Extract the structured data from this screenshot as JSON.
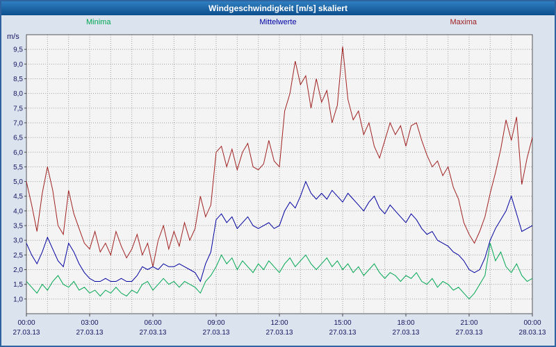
{
  "window": {
    "title": "Windgeschwindigkeit [m/s] skaliert"
  },
  "legend": {
    "minima": "Minima",
    "mittelwerte": "Mittelwerte",
    "maxima": "Maxima"
  },
  "colors": {
    "maxima": "#a02020",
    "mittelwerte": "#0000a0",
    "minima": "#00a651",
    "titlebar_top": "#2f7fc1",
    "titlebar_bottom": "#0d4e8c",
    "page_bg": "#dbe3ef",
    "plot_bg": "#f4f4f4",
    "grid": "#a0a0a0",
    "axis_text": "#14145f",
    "border": "#2f639f"
  },
  "chart_data": {
    "type": "line",
    "title": "Windgeschwindigkeit [m/s] skaliert",
    "ylabel": "m/s",
    "xlabel": "",
    "grid": true,
    "legend_position": "top",
    "ylim": [
      0.5,
      10.0
    ],
    "y_tick_min": 1.0,
    "y_tick_max": 9.5,
    "y_tick_step": 0.5,
    "y_tick_labels": [
      "1,0",
      "1,5",
      "2,0",
      "2,5",
      "3,0",
      "3,5",
      "4,0",
      "4,5",
      "5,0",
      "5,5",
      "6,0",
      "6,5",
      "7,0",
      "7,5",
      "8,0",
      "8,5",
      "9,0",
      "9,5"
    ],
    "x_hours": 24,
    "sample_interval_hours": 0.25,
    "x_ticks": [
      {
        "hour": 0,
        "time": "00:00",
        "date": "27.03.13"
      },
      {
        "hour": 3,
        "time": "03:00",
        "date": "27.03.13"
      },
      {
        "hour": 6,
        "time": "06:00",
        "date": "27.03.13"
      },
      {
        "hour": 9,
        "time": "09:00",
        "date": "27.03.13"
      },
      {
        "hour": 12,
        "time": "12:00",
        "date": "27.03.13"
      },
      {
        "hour": 15,
        "time": "15:00",
        "date": "27.03.13"
      },
      {
        "hour": 18,
        "time": "18:00",
        "date": "27.03.13"
      },
      {
        "hour": 21,
        "time": "21:00",
        "date": "27.03.13"
      },
      {
        "hour": 24,
        "time": "00:00",
        "date": "28.03.13"
      }
    ],
    "series": [
      {
        "name": "Maxima",
        "color_key": "maxima",
        "values": [
          5.0,
          4.2,
          3.3,
          4.6,
          5.5,
          4.7,
          3.5,
          3.2,
          4.7,
          3.9,
          3.4,
          2.9,
          2.7,
          3.3,
          2.6,
          2.9,
          2.5,
          3.3,
          2.8,
          2.4,
          2.7,
          3.2,
          2.5,
          2.9,
          2.1,
          3.0,
          3.5,
          2.7,
          3.3,
          2.8,
          3.6,
          3.0,
          3.4,
          4.5,
          3.8,
          4.2,
          6.0,
          6.2,
          5.5,
          6.1,
          5.4,
          6.0,
          6.3,
          5.5,
          5.4,
          5.6,
          6.4,
          5.7,
          5.5,
          7.4,
          8.0,
          9.1,
          8.3,
          8.6,
          7.5,
          8.5,
          7.7,
          8.1,
          7.0,
          7.6,
          9.6,
          7.8,
          7.1,
          7.4,
          6.6,
          7.0,
          6.2,
          5.8,
          6.4,
          7.0,
          6.6,
          6.9,
          6.2,
          6.9,
          7.0,
          6.4,
          5.9,
          5.5,
          5.7,
          5.2,
          5.5,
          4.8,
          4.4,
          3.6,
          3.2,
          2.9,
          3.3,
          3.8,
          4.6,
          5.3,
          6.1,
          7.1,
          6.4,
          7.2,
          4.9,
          5.8,
          6.5
        ]
      },
      {
        "name": "Mittelwerte",
        "color_key": "mittelwerte",
        "values": [
          2.9,
          2.5,
          2.2,
          2.6,
          3.1,
          2.7,
          2.3,
          2.1,
          2.9,
          2.6,
          2.2,
          1.9,
          1.7,
          1.6,
          1.6,
          1.7,
          1.6,
          1.6,
          1.7,
          1.6,
          1.6,
          1.8,
          2.1,
          2.0,
          2.1,
          2.0,
          2.2,
          2.1,
          2.1,
          2.2,
          2.1,
          2.0,
          1.9,
          1.6,
          2.2,
          2.6,
          3.7,
          3.9,
          3.6,
          3.8,
          3.4,
          3.6,
          3.8,
          3.5,
          3.4,
          3.5,
          3.6,
          3.4,
          3.5,
          4.0,
          4.3,
          4.1,
          4.5,
          5.0,
          4.6,
          4.4,
          4.6,
          4.4,
          4.7,
          4.5,
          4.3,
          4.6,
          4.4,
          4.2,
          4.0,
          4.3,
          4.5,
          4.1,
          3.9,
          4.2,
          4.0,
          3.8,
          3.6,
          3.9,
          3.7,
          3.4,
          3.2,
          3.3,
          3.0,
          2.9,
          2.8,
          2.6,
          2.5,
          2.3,
          2.0,
          1.9,
          2.0,
          2.4,
          3.0,
          3.4,
          3.7,
          4.0,
          4.5,
          3.9,
          3.3,
          3.4,
          3.5
        ]
      },
      {
        "name": "Minima",
        "color_key": "minima",
        "values": [
          1.6,
          1.4,
          1.2,
          1.5,
          1.3,
          1.6,
          1.8,
          1.5,
          1.4,
          1.6,
          1.3,
          1.4,
          1.2,
          1.3,
          1.1,
          1.3,
          1.2,
          1.4,
          1.2,
          1.1,
          1.3,
          1.2,
          1.5,
          1.6,
          1.3,
          1.5,
          1.7,
          1.5,
          1.6,
          1.4,
          1.6,
          1.5,
          1.4,
          1.2,
          1.6,
          1.8,
          2.1,
          2.5,
          2.2,
          2.4,
          2.0,
          2.3,
          2.1,
          1.9,
          2.2,
          2.0,
          2.3,
          2.1,
          1.9,
          2.2,
          2.4,
          2.1,
          2.3,
          2.5,
          2.2,
          2.0,
          2.2,
          2.4,
          2.1,
          2.3,
          2.0,
          2.2,
          1.9,
          2.1,
          1.8,
          2.0,
          2.2,
          1.9,
          1.7,
          1.9,
          1.8,
          1.6,
          1.8,
          1.7,
          1.9,
          1.6,
          1.5,
          1.7,
          1.4,
          1.6,
          1.5,
          1.3,
          1.4,
          1.2,
          1.0,
          1.2,
          1.5,
          1.8,
          2.9,
          2.3,
          2.6,
          2.1,
          1.9,
          2.2,
          1.8,
          1.6,
          1.7
        ]
      }
    ]
  }
}
